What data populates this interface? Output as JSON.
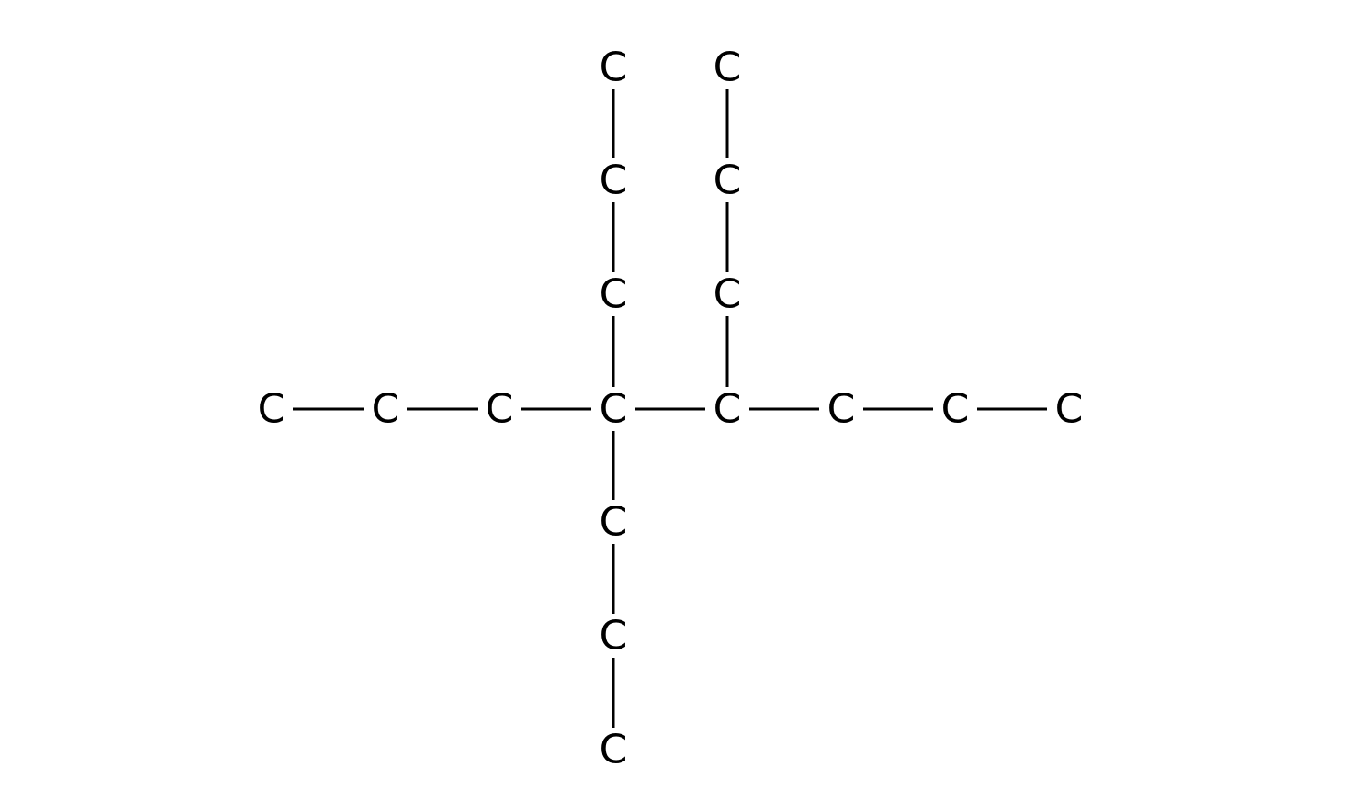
{
  "diagram": {
    "type": "skeletal-structure",
    "colors": {
      "ink": "#000000",
      "background": "#ffffff"
    },
    "atoms": [
      {
        "id": "m1",
        "label": "C"
      },
      {
        "id": "m2",
        "label": "C"
      },
      {
        "id": "m3",
        "label": "C"
      },
      {
        "id": "m4",
        "label": "C"
      },
      {
        "id": "m5",
        "label": "C"
      },
      {
        "id": "m6",
        "label": "C"
      },
      {
        "id": "m7",
        "label": "C"
      },
      {
        "id": "m8",
        "label": "C"
      },
      {
        "id": "a1",
        "label": "C"
      },
      {
        "id": "a2",
        "label": "C"
      },
      {
        "id": "a3",
        "label": "C"
      },
      {
        "id": "b1",
        "label": "C"
      },
      {
        "id": "b2",
        "label": "C"
      },
      {
        "id": "b3",
        "label": "C"
      },
      {
        "id": "d1",
        "label": "C"
      },
      {
        "id": "d2",
        "label": "C"
      },
      {
        "id": "d3",
        "label": "C"
      }
    ],
    "bonds": [
      [
        "m1",
        "m2"
      ],
      [
        "m2",
        "m3"
      ],
      [
        "m3",
        "m4"
      ],
      [
        "m4",
        "m5"
      ],
      [
        "m5",
        "m6"
      ],
      [
        "m6",
        "m7"
      ],
      [
        "m7",
        "m8"
      ],
      [
        "a1",
        "a2"
      ],
      [
        "a2",
        "a3"
      ],
      [
        "a3",
        "m4"
      ],
      [
        "b1",
        "b2"
      ],
      [
        "b2",
        "b3"
      ],
      [
        "b3",
        "m5"
      ],
      [
        "m4",
        "d1"
      ],
      [
        "d1",
        "d2"
      ],
      [
        "d2",
        "d3"
      ]
    ]
  }
}
